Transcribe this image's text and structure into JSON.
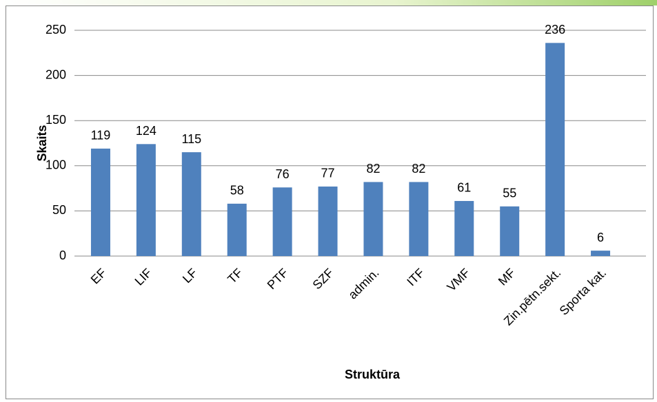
{
  "chart_data": {
    "type": "bar",
    "categories": [
      "EF",
      "LIF",
      "LF",
      "TF",
      "PTF",
      "SZF",
      "admin.",
      "ITF",
      "VMF",
      "MF",
      "Zin.pētn.sekt.",
      "Sporta kat."
    ],
    "values": [
      119,
      124,
      115,
      58,
      76,
      77,
      82,
      82,
      61,
      55,
      236,
      6
    ],
    "color": "#4f81bd",
    "xlabel": "Struktūra",
    "ylabel": "Skaits",
    "ylim": [
      0,
      250
    ],
    "yticks": [
      0,
      50,
      100,
      150,
      200,
      250
    ],
    "grid": true
  }
}
